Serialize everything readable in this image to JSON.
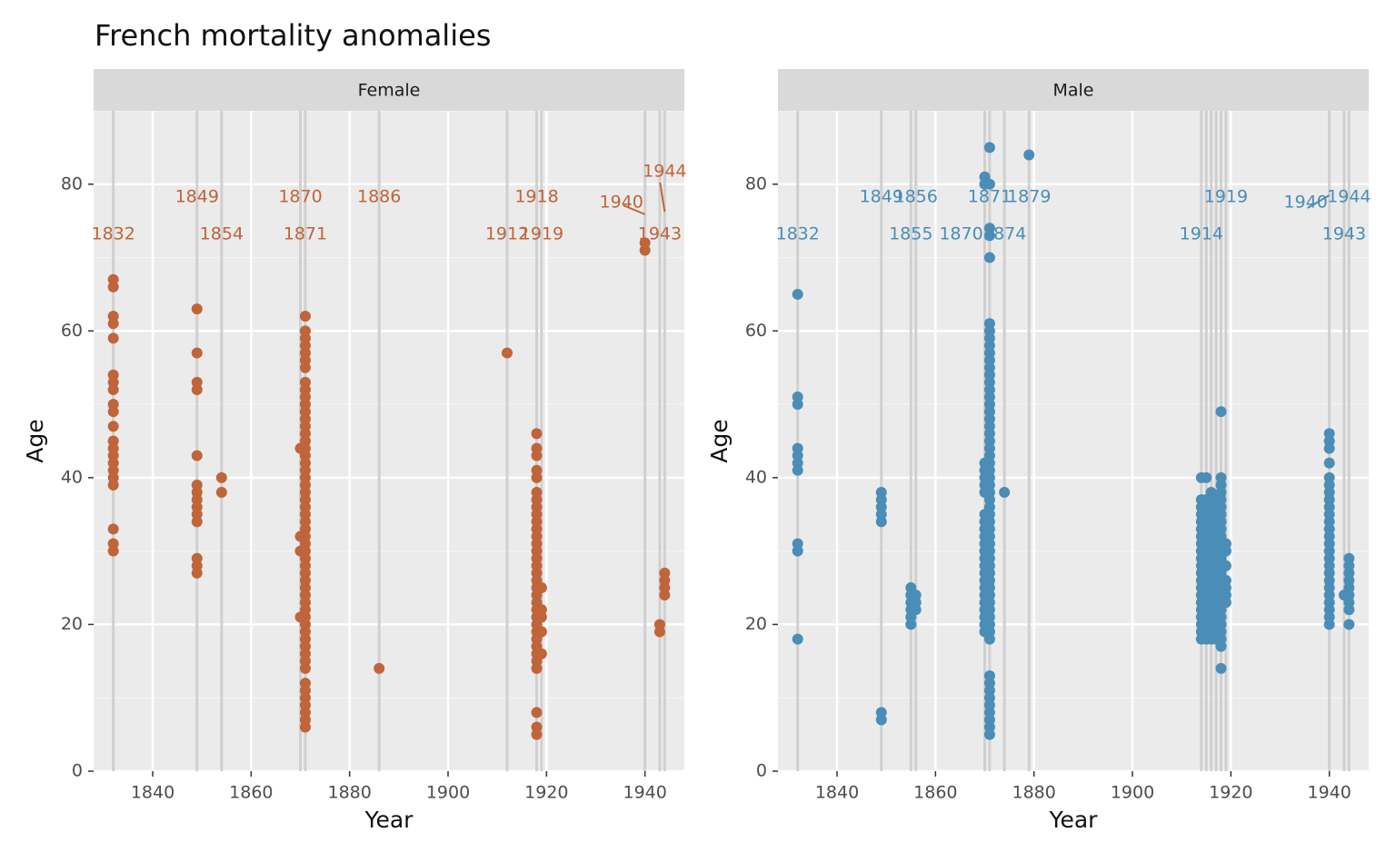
{
  "title": "French mortality anomalies",
  "chart_data": [
    {
      "type": "scatter",
      "panel": "Female",
      "color": "#C0643A",
      "xlabel": "Year",
      "ylabel": "Age",
      "xlim": [
        1828,
        1948
      ],
      "ylim": [
        0,
        90
      ],
      "xticks": [
        1840,
        1860,
        1880,
        1900,
        1920,
        1940
      ],
      "yticks": [
        0,
        20,
        40,
        60,
        80
      ],
      "grid": true,
      "anomaly_years": [
        1832,
        1849,
        1854,
        1870,
        1871,
        1886,
        1912,
        1918,
        1919,
        1940,
        1943,
        1944
      ],
      "year_labels": [
        {
          "year": 1832,
          "text": "1832",
          "row": "low"
        },
        {
          "year": 1849,
          "text": "1849",
          "row": "high"
        },
        {
          "year": 1854,
          "text": "1854",
          "row": "low"
        },
        {
          "year": 1870,
          "text": "1870",
          "row": "high"
        },
        {
          "year": 1871,
          "text": "1871",
          "row": "low"
        },
        {
          "year": 1886,
          "text": "1886",
          "row": "high"
        },
        {
          "year": 1912,
          "text": "1912",
          "row": "low"
        },
        {
          "year": 1918,
          "text": "1918",
          "row": "high"
        },
        {
          "year": 1919,
          "text": "1919",
          "row": "low"
        },
        {
          "year": 1940,
          "text": "1940",
          "row": "mid",
          "leader": true,
          "offset": -1
        },
        {
          "year": 1943,
          "text": "1943",
          "row": "low"
        },
        {
          "year": 1944,
          "text": "1944",
          "row": "top",
          "leader": true,
          "offset": 0
        }
      ],
      "points": [
        {
          "x": 1832,
          "y": [
            67,
            66,
            62,
            61,
            59,
            54,
            53,
            52,
            50,
            49,
            47,
            45,
            44,
            43,
            42,
            41,
            40,
            39,
            33,
            31,
            30
          ]
        },
        {
          "x": 1849,
          "y": [
            63,
            57,
            53,
            52,
            43,
            39,
            38,
            37,
            36,
            35,
            34,
            29,
            28,
            27
          ]
        },
        {
          "x": 1854,
          "y": [
            40,
            38
          ]
        },
        {
          "x": 1870,
          "y": [
            44,
            32,
            30,
            21
          ]
        },
        {
          "x": 1871,
          "y": [
            62,
            60,
            59,
            58,
            57,
            56,
            55,
            53,
            52,
            51,
            50,
            49,
            48,
            47,
            46,
            45,
            44,
            43,
            42,
            41,
            40,
            39,
            38,
            37,
            36,
            35,
            34,
            33,
            32,
            31,
            30,
            29,
            28,
            27,
            26,
            25,
            24,
            23,
            22,
            21,
            20,
            19,
            18,
            17,
            16,
            15,
            14,
            12,
            11,
            10,
            9,
            8,
            7,
            6
          ]
        },
        {
          "x": 1886,
          "y": [
            14
          ]
        },
        {
          "x": 1912,
          "y": [
            57
          ]
        },
        {
          "x": 1918,
          "y": [
            46,
            44,
            43,
            41,
            40,
            38,
            37,
            36,
            35,
            34,
            33,
            32,
            31,
            30,
            29,
            28,
            27,
            26,
            25,
            24,
            23,
            22,
            21,
            20,
            19,
            18,
            17,
            16,
            15,
            14,
            8,
            6,
            5
          ]
        },
        {
          "x": 1919,
          "y": [
            25,
            22,
            21,
            19,
            16
          ]
        },
        {
          "x": 1940,
          "y": [
            72,
            71
          ]
        },
        {
          "x": 1943,
          "y": [
            20,
            19
          ]
        },
        {
          "x": 1944,
          "y": [
            27,
            26,
            25,
            24
          ]
        }
      ]
    },
    {
      "type": "scatter",
      "panel": "Male",
      "color": "#4A8DB7",
      "xlabel": "Year",
      "ylabel": "Age",
      "xlim": [
        1828,
        1948
      ],
      "ylim": [
        0,
        90
      ],
      "xticks": [
        1840,
        1860,
        1880,
        1900,
        1920,
        1940
      ],
      "yticks": [
        0,
        20,
        40,
        60,
        80
      ],
      "grid": true,
      "anomaly_years": [
        1832,
        1849,
        1855,
        1856,
        1870,
        1871,
        1874,
        1879,
        1914,
        1915,
        1916,
        1917,
        1918,
        1919,
        1940,
        1943,
        1944
      ],
      "year_labels": [
        {
          "year": 1832,
          "text": "1832",
          "row": "low"
        },
        {
          "year": 1849,
          "text": "1849",
          "row": "high"
        },
        {
          "year": 1855,
          "text": "1855",
          "row": "low"
        },
        {
          "year": 1856,
          "text": "1856",
          "row": "high"
        },
        {
          "year": 1870,
          "text": "1870",
          "row": "low",
          "offset": -1
        },
        {
          "year": 1871,
          "text": "1871",
          "row": "high"
        },
        {
          "year": 1874,
          "text": "1874",
          "row": "low"
        },
        {
          "year": 1879,
          "text": "1879",
          "row": "high"
        },
        {
          "year": 1914,
          "text": "1914",
          "row": "low"
        },
        {
          "year": 1919,
          "text": "1919",
          "row": "high"
        },
        {
          "year": 1940,
          "text": "1940",
          "row": "mid",
          "leader": true,
          "offset": -1
        },
        {
          "year": 1943,
          "text": "1943",
          "row": "low"
        },
        {
          "year": 1944,
          "text": "1944",
          "row": "high"
        }
      ],
      "points": [
        {
          "x": 1832,
          "y": [
            65,
            51,
            50,
            44,
            43,
            42,
            41,
            31,
            30,
            18
          ]
        },
        {
          "x": 1849,
          "y": [
            38,
            37,
            36,
            35,
            34,
            8,
            7
          ]
        },
        {
          "x": 1855,
          "y": [
            25,
            24,
            23,
            22,
            21,
            20
          ]
        },
        {
          "x": 1856,
          "y": [
            24,
            23,
            22
          ]
        },
        {
          "x": 1870,
          "y": [
            81,
            80,
            42,
            41,
            40,
            39,
            38,
            35,
            34,
            33,
            32,
            31,
            30,
            29,
            28,
            27,
            26,
            25,
            24,
            23,
            22,
            21,
            20,
            19
          ]
        },
        {
          "x": 1871,
          "y": [
            85,
            80,
            74,
            73,
            70,
            61,
            60,
            59,
            58,
            57,
            56,
            55,
            54,
            53,
            52,
            51,
            50,
            49,
            48,
            47,
            46,
            45,
            44,
            43,
            42,
            41,
            40,
            39,
            38,
            37,
            36,
            35,
            34,
            33,
            32,
            31,
            30,
            29,
            28,
            27,
            26,
            25,
            24,
            23,
            22,
            21,
            20,
            19,
            18,
            13,
            12,
            11,
            10,
            9,
            8,
            7,
            6,
            5
          ]
        },
        {
          "x": 1874,
          "y": [
            38
          ]
        },
        {
          "x": 1879,
          "y": [
            84
          ]
        },
        {
          "x": 1914,
          "y": [
            40,
            37,
            36,
            35,
            34,
            33,
            32,
            31,
            30,
            29,
            28,
            27,
            26,
            25,
            24,
            23,
            22,
            21,
            20,
            19,
            18
          ]
        },
        {
          "x": 1915,
          "y": [
            40,
            37,
            36,
            35,
            34,
            33,
            32,
            31,
            30,
            29,
            28,
            27,
            26,
            25,
            24,
            23,
            22,
            21,
            20,
            19,
            18
          ]
        },
        {
          "x": 1916,
          "y": [
            38,
            37,
            36,
            35,
            34,
            33,
            32,
            31,
            30,
            29,
            28,
            27,
            26,
            25,
            24,
            23,
            22,
            21,
            20,
            19,
            18
          ]
        },
        {
          "x": 1917,
          "y": [
            37,
            36,
            35,
            34,
            33,
            32,
            31,
            30,
            29,
            28,
            27,
            26,
            25,
            24,
            23,
            22,
            21,
            20,
            19,
            18
          ]
        },
        {
          "x": 1918,
          "y": [
            49,
            40,
            39,
            38,
            37,
            36,
            35,
            34,
            33,
            32,
            31,
            30,
            29,
            28,
            27,
            26,
            25,
            24,
            23,
            22,
            21,
            20,
            19,
            18,
            17,
            14
          ]
        },
        {
          "x": 1919,
          "y": [
            31,
            30,
            28,
            26,
            25,
            24,
            23
          ]
        },
        {
          "x": 1940,
          "y": [
            46,
            45,
            44,
            42,
            40,
            39,
            38,
            37,
            36,
            35,
            34,
            33,
            32,
            31,
            30,
            29,
            28,
            27,
            26,
            25,
            24,
            23,
            22,
            21,
            20
          ]
        },
        {
          "x": 1943,
          "y": [
            24
          ]
        },
        {
          "x": 1944,
          "y": [
            29,
            28,
            27,
            26,
            25,
            24,
            23,
            22,
            20
          ]
        }
      ]
    }
  ]
}
